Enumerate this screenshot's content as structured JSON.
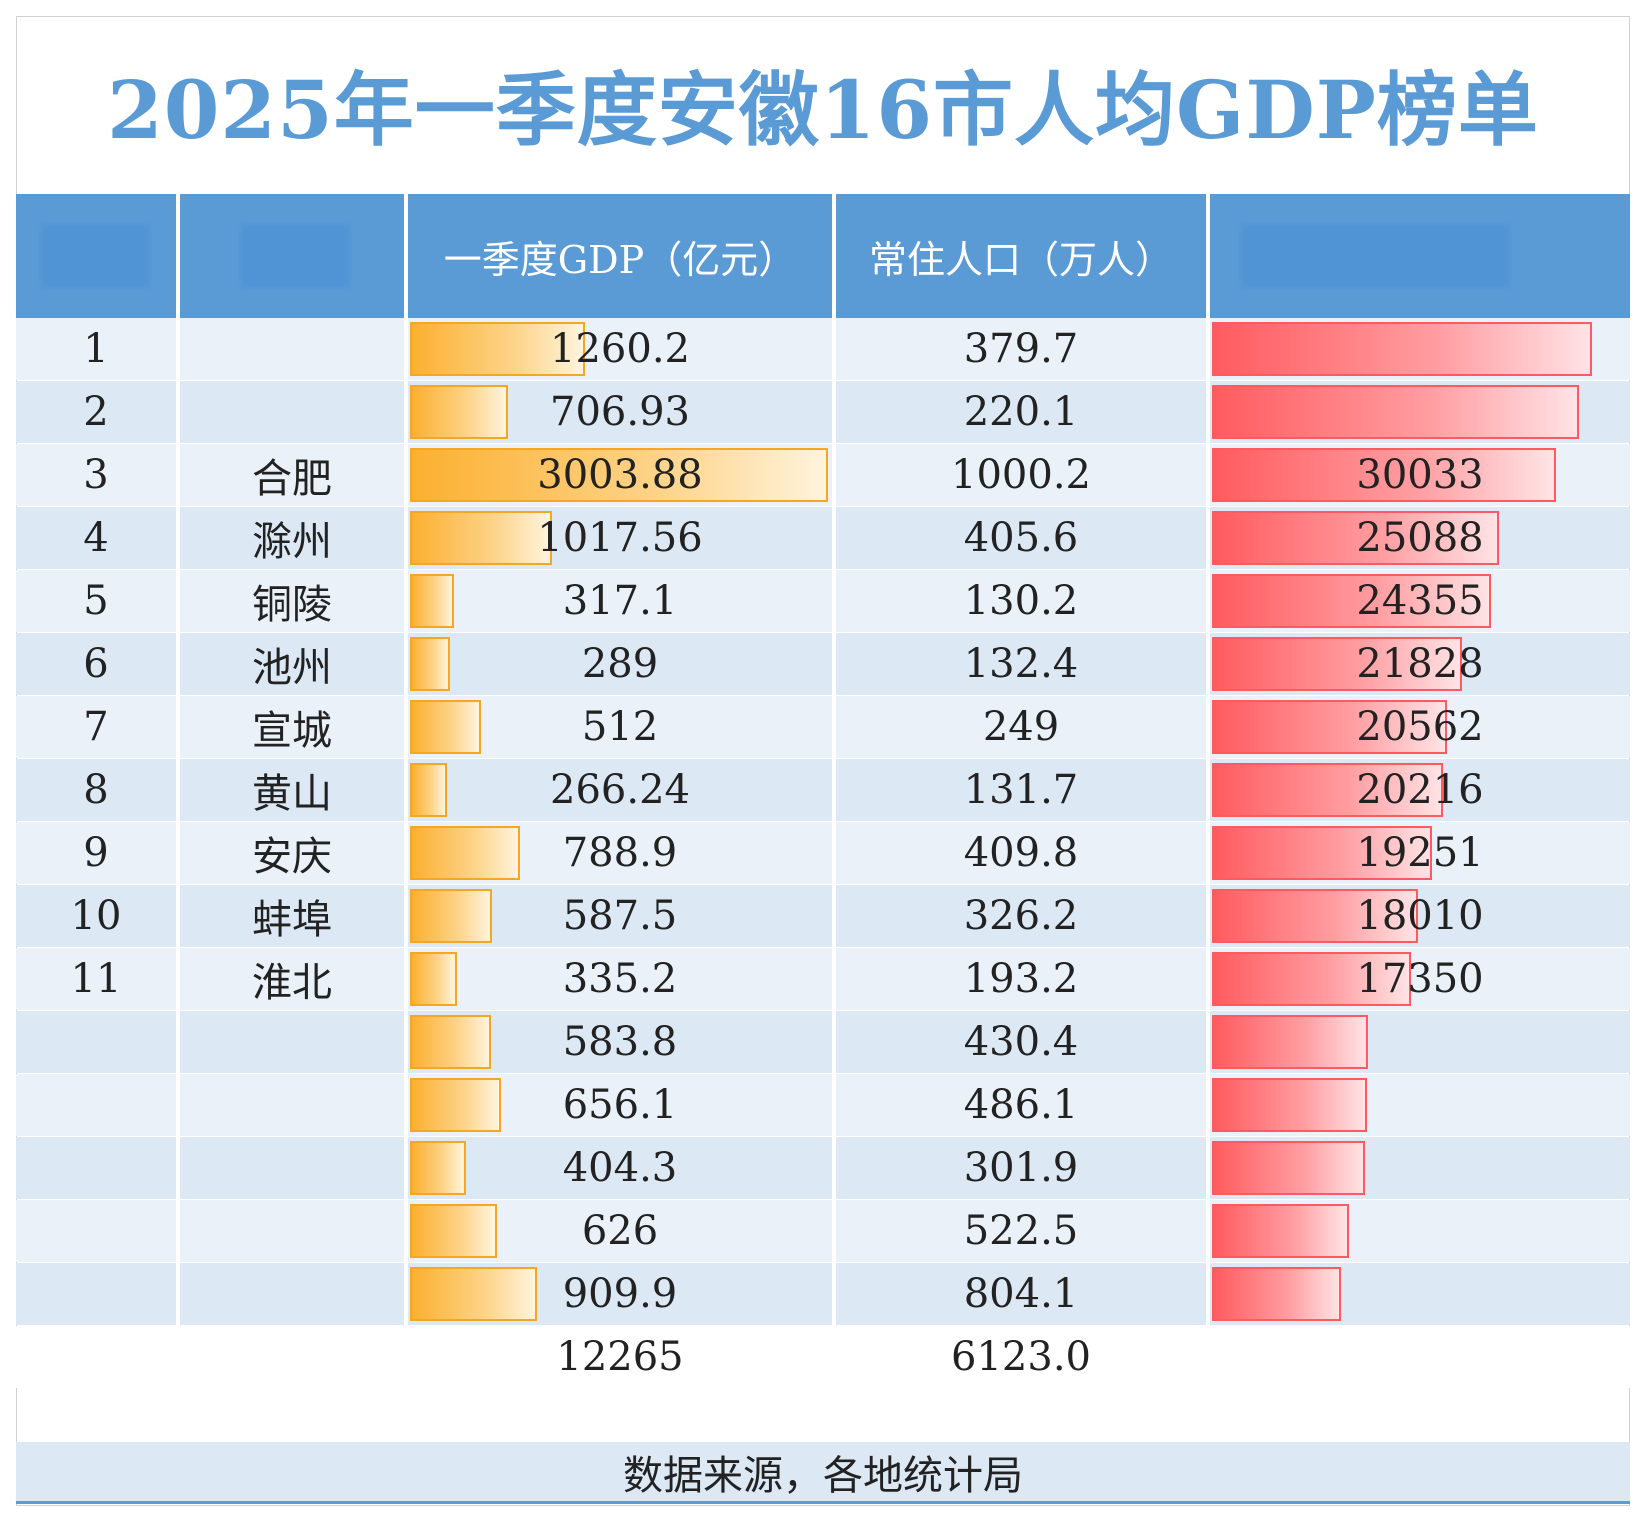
{
  "title": "2025年一季度安徽16市人均GDP榜单",
  "header": {
    "col_rank": "",
    "col_city": "",
    "col_gdp": "一季度GDP（亿元）",
    "col_pop": "常住人口（万人）",
    "col_per": ""
  },
  "colors": {
    "header": "#5b9bd5",
    "gdp_bar": "#fbb030",
    "per_bar": "#ff5b5f",
    "row_light": "#eaf1f8",
    "row_dark": "#dce8f4"
  },
  "chart_data": {
    "type": "table",
    "columns": [
      "",
      "",
      "一季度GDP（亿元）",
      "常住人口（万人）",
      ""
    ],
    "gdp_bar_max": 3003.88,
    "per_bar_max": 36000,
    "rows": [
      {
        "rank": "1",
        "city": "",
        "gdp": "1260.2",
        "pop": "379.7",
        "per": "",
        "per_bar": 33200
      },
      {
        "rank": "2",
        "city": "",
        "gdp": "706.93",
        "pop": "220.1",
        "per": "",
        "per_bar": 32100
      },
      {
        "rank": "3",
        "city": "合肥",
        "gdp": "3003.88",
        "pop": "1000.2",
        "per": "30033",
        "per_bar": 30033
      },
      {
        "rank": "4",
        "city": "滁州",
        "gdp": "1017.56",
        "pop": "405.6",
        "per": "25088",
        "per_bar": 25088
      },
      {
        "rank": "5",
        "city": "铜陵",
        "gdp": "317.1",
        "pop": "130.2",
        "per": "24355",
        "per_bar": 24355
      },
      {
        "rank": "6",
        "city": "池州",
        "gdp": "289",
        "pop": "132.4",
        "per": "21828",
        "per_bar": 21828
      },
      {
        "rank": "7",
        "city": "宣城",
        "gdp": "512",
        "pop": "249",
        "per": "20562",
        "per_bar": 20562
      },
      {
        "rank": "8",
        "city": "黄山",
        "gdp": "266.24",
        "pop": "131.7",
        "per": "20216",
        "per_bar": 20216
      },
      {
        "rank": "9",
        "city": "安庆",
        "gdp": "788.9",
        "pop": "409.8",
        "per": "19251",
        "per_bar": 19251
      },
      {
        "rank": "10",
        "city": "蚌埠",
        "gdp": "587.5",
        "pop": "326.2",
        "per": "18010",
        "per_bar": 18010
      },
      {
        "rank": "11",
        "city": "淮北",
        "gdp": "335.2",
        "pop": "193.2",
        "per": "17350",
        "per_bar": 17350
      },
      {
        "rank": "",
        "city": "",
        "gdp": "583.8",
        "pop": "430.4",
        "per": "",
        "per_bar": 13600
      },
      {
        "rank": "",
        "city": "",
        "gdp": "656.1",
        "pop": "486.1",
        "per": "",
        "per_bar": 13500
      },
      {
        "rank": "",
        "city": "",
        "gdp": "404.3",
        "pop": "301.9",
        "per": "",
        "per_bar": 13400
      },
      {
        "rank": "",
        "city": "",
        "gdp": "626",
        "pop": "522.5",
        "per": "",
        "per_bar": 12000
      },
      {
        "rank": "",
        "city": "",
        "gdp": "909.9",
        "pop": "804.1",
        "per": "",
        "per_bar": 11300
      }
    ],
    "total": {
      "gdp": "12265",
      "pop": "6123.0"
    }
  },
  "footer": "数据来源，各地统计局"
}
